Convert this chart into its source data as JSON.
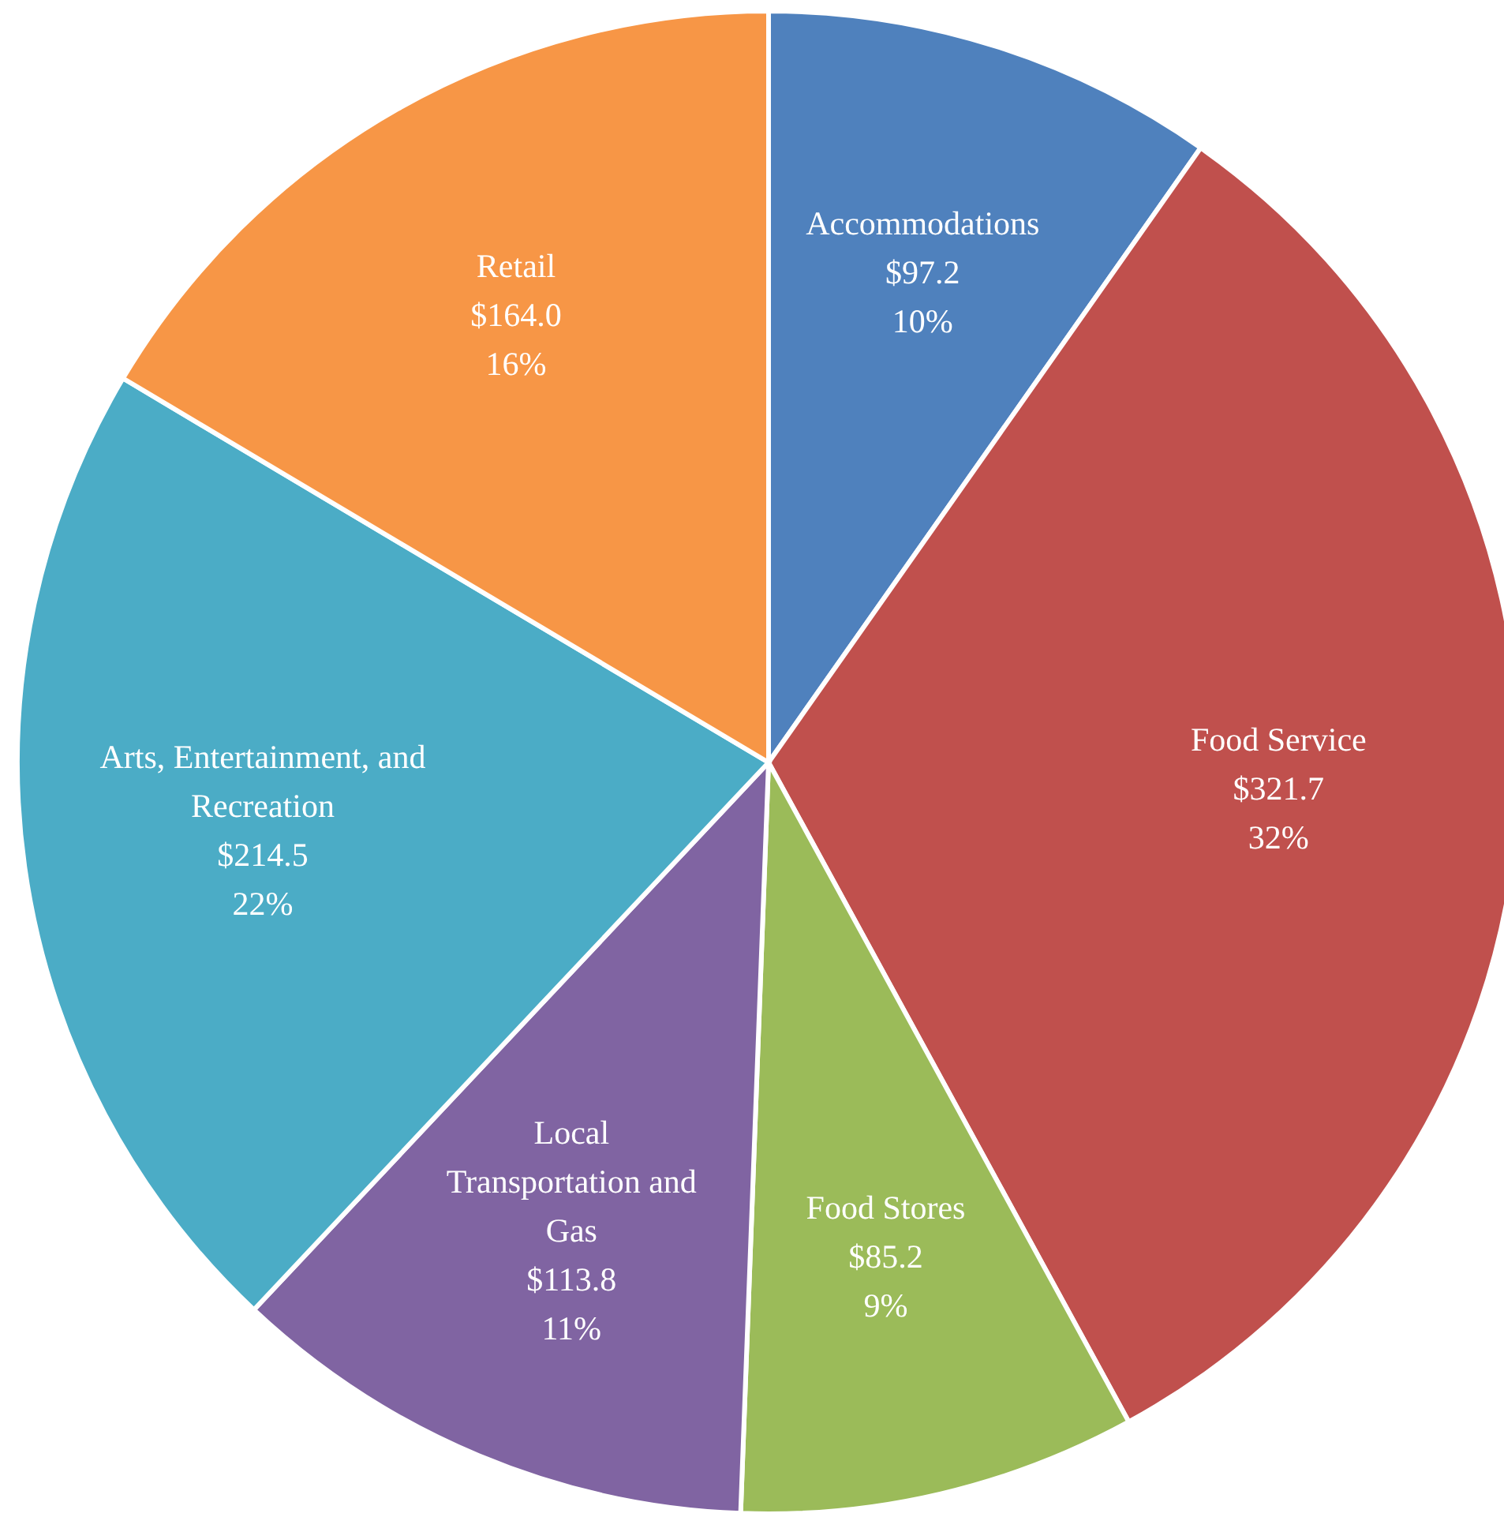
{
  "chart_data": {
    "type": "pie",
    "categories": [
      "Accommodations",
      "Food Service",
      "Food Stores",
      "Local Transportation and Gas",
      "Arts, Entertainment, and Recreation",
      "Retail"
    ],
    "values": [
      97.2,
      321.7,
      85.2,
      113.8,
      214.5,
      164.0
    ],
    "value_labels": [
      "$97.2\n10%",
      "$321.7\n32%",
      "$85.2\n9%",
      "$113.8\n11%",
      "$214.5\n22%",
      "$164.0\n16%"
    ],
    "colors": [
      "#4f81bd",
      "#c0504d",
      "#9bbb59",
      "#8064a2",
      "#4bacc6",
      "#f79646"
    ]
  }
}
